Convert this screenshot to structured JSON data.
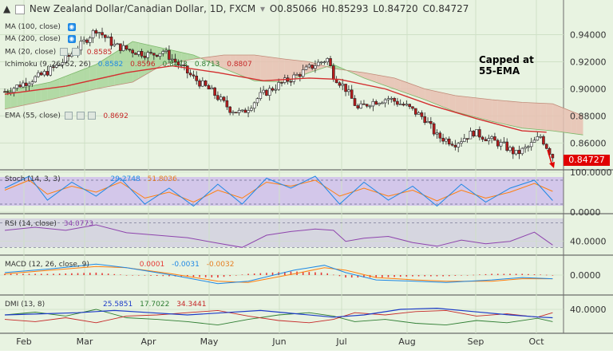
{
  "header": {
    "title": "New Zealand Dollar/Canadian Dollar, 1D, FXCM",
    "open": "O0.85066",
    "high": "H0.85293",
    "low": "L0.84720",
    "close": "C0.84727"
  },
  "overlay_labels": [
    {
      "name": "MA (100, close)",
      "value": ""
    },
    {
      "name": "MA (200, close)",
      "value": ""
    },
    {
      "name": "MA (20, close)",
      "value": "0.8585"
    },
    {
      "name": "Ichimoku (9, 26, 52, 26)",
      "values": [
        "0.8582",
        "0.8596",
        "0.8473",
        "0.8713",
        "0.8807"
      ]
    },
    {
      "name": "EMA (55, close)",
      "value": "0.8692"
    }
  ],
  "annotation": {
    "line1": "Capped at",
    "line2": "55-EMA"
  },
  "current_price": "0.84727",
  "colors": {
    "bull": "#2e7d32",
    "bear": "#b71c1c",
    "ema": "#d32f2f",
    "cloud_bull": "#a8d59a",
    "cloud_bear": "#e7c0b2",
    "stoch_k": "#1e88e5",
    "stoch_d": "#ff7f0e",
    "rsi": "#8e44ad",
    "macd": "#1e88e5",
    "signal": "#ff7f0e",
    "hist": "#e53935",
    "dmi_plus": "#2e7d32",
    "dmi_minus": "#c62828",
    "adx": "#1e3cc8"
  },
  "chart_data": {
    "type": "candlestick",
    "instrument": "New Zealand Dollar/Canadian Dollar",
    "timeframe": "1D",
    "x_months": [
      "Feb",
      "Mar",
      "Apr",
      "May",
      "Jun",
      "Jul",
      "Aug",
      "Sep",
      "Oct"
    ],
    "ylim": [
      0.842,
      0.955
    ],
    "y_ticks": [
      "0.94000",
      "0.92000",
      "0.90000",
      "0.88000",
      "0.86000"
    ],
    "price_path": [
      [
        0,
        0.898
      ],
      [
        6,
        0.904
      ],
      [
        12,
        0.91
      ],
      [
        18,
        0.918
      ],
      [
        24,
        0.93
      ],
      [
        30,
        0.944
      ],
      [
        36,
        0.932
      ],
      [
        42,
        0.928
      ],
      [
        48,
        0.925
      ],
      [
        52,
        0.928
      ],
      [
        56,
        0.92
      ],
      [
        62,
        0.908
      ],
      [
        68,
        0.898
      ],
      [
        74,
        0.885
      ],
      [
        78,
        0.882
      ],
      [
        84,
        0.895
      ],
      [
        90,
        0.903
      ],
      [
        96,
        0.91
      ],
      [
        102,
        0.918
      ],
      [
        106,
        0.922
      ],
      [
        108,
        0.91
      ],
      [
        112,
        0.9
      ],
      [
        116,
        0.885
      ],
      [
        120,
        0.89
      ],
      [
        126,
        0.893
      ],
      [
        132,
        0.887
      ],
      [
        138,
        0.878
      ],
      [
        142,
        0.865
      ],
      [
        148,
        0.86
      ],
      [
        154,
        0.868
      ],
      [
        160,
        0.862
      ],
      [
        164,
        0.858
      ],
      [
        168,
        0.852
      ],
      [
        172,
        0.857
      ],
      [
        176,
        0.865
      ],
      [
        180,
        0.85
      ]
    ],
    "ema55_path": [
      [
        0,
        0.896
      ],
      [
        20,
        0.902
      ],
      [
        40,
        0.912
      ],
      [
        55,
        0.917
      ],
      [
        70,
        0.912
      ],
      [
        85,
        0.906
      ],
      [
        100,
        0.908
      ],
      [
        110,
        0.907
      ],
      [
        125,
        0.9
      ],
      [
        140,
        0.888
      ],
      [
        155,
        0.878
      ],
      [
        170,
        0.869
      ],
      [
        178,
        0.868
      ]
    ],
    "cloud": {
      "span_a": [
        [
          0,
          0.898
        ],
        [
          15,
          0.905
        ],
        [
          30,
          0.918
        ],
        [
          42,
          0.935
        ],
        [
          52,
          0.93
        ],
        [
          62,
          0.925
        ],
        [
          72,
          0.915
        ],
        [
          82,
          0.906
        ],
        [
          92,
          0.905
        ],
        [
          100,
          0.912
        ],
        [
          108,
          0.918
        ],
        [
          118,
          0.908
        ],
        [
          128,
          0.9
        ],
        [
          138,
          0.892
        ],
        [
          148,
          0.883
        ],
        [
          160,
          0.876
        ],
        [
          170,
          0.871
        ],
        [
          180,
          0.869
        ],
        [
          190,
          0.866
        ]
      ],
      "span_b": [
        [
          0,
          0.885
        ],
        [
          15,
          0.892
        ],
        [
          30,
          0.9
        ],
        [
          42,
          0.905
        ],
        [
          52,
          0.918
        ],
        [
          62,
          0.922
        ],
        [
          72,
          0.925
        ],
        [
          82,
          0.925
        ],
        [
          92,
          0.922
        ],
        [
          100,
          0.92
        ],
        [
          108,
          0.915
        ],
        [
          118,
          0.912
        ],
        [
          128,
          0.908
        ],
        [
          138,
          0.9
        ],
        [
          148,
          0.895
        ],
        [
          160,
          0.892
        ],
        [
          170,
          0.89
        ],
        [
          180,
          0.889
        ],
        [
          190,
          0.88
        ]
      ]
    },
    "indicators": [
      {
        "name": "Stoch (14, 3, 3)",
        "values": [
          "29.2748",
          "51.8036"
        ],
        "ticks": [
          "100.0000",
          "0.0000"
        ],
        "ylim": [
          0,
          100
        ],
        "levels": [
          80,
          20
        ],
        "k_path": [
          [
            0,
            60
          ],
          [
            8,
            90
          ],
          [
            14,
            30
          ],
          [
            22,
            75
          ],
          [
            30,
            40
          ],
          [
            38,
            85
          ],
          [
            46,
            20
          ],
          [
            54,
            60
          ],
          [
            62,
            15
          ],
          [
            70,
            70
          ],
          [
            78,
            20
          ],
          [
            86,
            85
          ],
          [
            94,
            60
          ],
          [
            102,
            90
          ],
          [
            110,
            20
          ],
          [
            118,
            75
          ],
          [
            126,
            30
          ],
          [
            134,
            65
          ],
          [
            142,
            15
          ],
          [
            150,
            70
          ],
          [
            158,
            25
          ],
          [
            166,
            60
          ],
          [
            174,
            80
          ],
          [
            180,
            29
          ]
        ],
        "d_path": [
          [
            0,
            55
          ],
          [
            8,
            80
          ],
          [
            14,
            45
          ],
          [
            22,
            65
          ],
          [
            30,
            50
          ],
          [
            38,
            75
          ],
          [
            46,
            35
          ],
          [
            54,
            50
          ],
          [
            62,
            25
          ],
          [
            70,
            55
          ],
          [
            78,
            35
          ],
          [
            86,
            75
          ],
          [
            94,
            65
          ],
          [
            102,
            80
          ],
          [
            110,
            40
          ],
          [
            118,
            60
          ],
          [
            126,
            40
          ],
          [
            134,
            55
          ],
          [
            142,
            28
          ],
          [
            150,
            55
          ],
          [
            158,
            35
          ],
          [
            166,
            50
          ],
          [
            174,
            72
          ],
          [
            180,
            52
          ]
        ]
      },
      {
        "name": "RSI (14, close)",
        "value": "34.0773",
        "ticks": [
          "40.0000"
        ],
        "ylim": [
          20,
          80
        ],
        "levels": [
          70,
          30
        ],
        "path": [
          [
            0,
            58
          ],
          [
            10,
            63
          ],
          [
            20,
            58
          ],
          [
            30,
            67
          ],
          [
            40,
            54
          ],
          [
            50,
            50
          ],
          [
            60,
            46
          ],
          [
            70,
            37
          ],
          [
            78,
            30
          ],
          [
            86,
            50
          ],
          [
            94,
            56
          ],
          [
            102,
            60
          ],
          [
            108,
            58
          ],
          [
            112,
            40
          ],
          [
            118,
            45
          ],
          [
            126,
            48
          ],
          [
            134,
            38
          ],
          [
            142,
            32
          ],
          [
            150,
            42
          ],
          [
            158,
            36
          ],
          [
            166,
            40
          ],
          [
            174,
            55
          ],
          [
            180,
            34
          ]
        ]
      },
      {
        "name": "MACD (12, 26, close, 9)",
        "values": [
          "0.0001",
          "-0.0031",
          "-0.0032"
        ],
        "ticks": [
          "0.0000"
        ],
        "ylim": [
          -0.015,
          0.015
        ],
        "macd_path": [
          [
            0,
            0.002
          ],
          [
            15,
            0.005
          ],
          [
            30,
            0.009
          ],
          [
            40,
            0.006
          ],
          [
            55,
            0
          ],
          [
            70,
            -0.007
          ],
          [
            80,
            -0.005
          ],
          [
            95,
            0.004
          ],
          [
            105,
            0.008
          ],
          [
            112,
            0.002
          ],
          [
            122,
            -0.004
          ],
          [
            135,
            -0.005
          ],
          [
            145,
            -0.006
          ],
          [
            160,
            -0.004
          ],
          [
            170,
            -0.002
          ],
          [
            180,
            -0.003
          ]
        ],
        "signal_path": [
          [
            0,
            0.001
          ],
          [
            15,
            0.004
          ],
          [
            30,
            0.007
          ],
          [
            40,
            0.006
          ],
          [
            55,
            0.001
          ],
          [
            70,
            -0.005
          ],
          [
            80,
            -0.006
          ],
          [
            95,
            0.001
          ],
          [
            105,
            0.006
          ],
          [
            112,
            0.004
          ],
          [
            122,
            -0.002
          ],
          [
            135,
            -0.004
          ],
          [
            145,
            -0.005
          ],
          [
            160,
            -0.005
          ],
          [
            170,
            -0.003
          ],
          [
            180,
            -0.003
          ]
        ]
      },
      {
        "name": "DMI (13, 8)",
        "values": [
          "25.5851",
          "17.7022",
          "34.3441"
        ],
        "ticks": [
          "40.0000"
        ],
        "ylim": [
          0,
          60
        ],
        "plus_path": [
          [
            0,
            30
          ],
          [
            10,
            35
          ],
          [
            20,
            28
          ],
          [
            30,
            40
          ],
          [
            40,
            25
          ],
          [
            50,
            22
          ],
          [
            60,
            18
          ],
          [
            70,
            12
          ],
          [
            80,
            22
          ],
          [
            90,
            30
          ],
          [
            100,
            34
          ],
          [
            108,
            28
          ],
          [
            115,
            18
          ],
          [
            125,
            22
          ],
          [
            135,
            15
          ],
          [
            145,
            12
          ],
          [
            155,
            20
          ],
          [
            165,
            16
          ],
          [
            175,
            24
          ],
          [
            180,
            18
          ]
        ],
        "minus_path": [
          [
            0,
            22
          ],
          [
            10,
            18
          ],
          [
            20,
            25
          ],
          [
            30,
            16
          ],
          [
            40,
            28
          ],
          [
            50,
            30
          ],
          [
            60,
            34
          ],
          [
            70,
            38
          ],
          [
            80,
            28
          ],
          [
            90,
            20
          ],
          [
            100,
            16
          ],
          [
            108,
            22
          ],
          [
            115,
            34
          ],
          [
            125,
            30
          ],
          [
            135,
            36
          ],
          [
            145,
            38
          ],
          [
            155,
            28
          ],
          [
            165,
            32
          ],
          [
            175,
            26
          ],
          [
            180,
            34
          ]
        ],
        "adx_path": [
          [
            0,
            30
          ],
          [
            12,
            32
          ],
          [
            24,
            34
          ],
          [
            36,
            38
          ],
          [
            48,
            34
          ],
          [
            60,
            30
          ],
          [
            72,
            34
          ],
          [
            84,
            38
          ],
          [
            96,
            32
          ],
          [
            108,
            26
          ],
          [
            118,
            30
          ],
          [
            130,
            40
          ],
          [
            142,
            42
          ],
          [
            154,
            36
          ],
          [
            166,
            30
          ],
          [
            176,
            26
          ],
          [
            180,
            25
          ]
        ]
      }
    ]
  }
}
